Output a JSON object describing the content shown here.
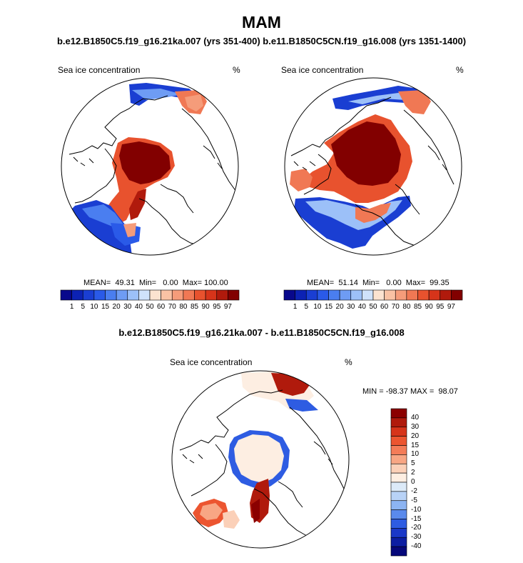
{
  "title": "MAM",
  "subtitle_top": "b.e12.B1850C5.f19_g16.21ka.007 (yrs 351-400) b.e11.B1850C5CN.f19_g16.008 (yrs 1351-1400)",
  "subtitle_diff": "b.e12.B1850C5.f19_g16.21ka.007 - b.e11.B1850C5CN.f19_g16.008",
  "colors": {
    "dark_red": "#8b0000",
    "red": "#e03a1a",
    "blue": "#1740d6",
    "navy": "#0a1a8c",
    "cream": "#fbe8d6",
    "land_outline": "#000000"
  },
  "chart_data": [
    {
      "type": "heatmap",
      "projection": "north-polar-stereographic",
      "title": "Sea ice concentration",
      "units": "%",
      "stats": {
        "mean": "49.31",
        "min": "0.00",
        "max": "100.00"
      },
      "stats_text": "MEAN=  49.31  Min=   0.00  Max= 100.00",
      "colorbar": {
        "orientation": "horizontal",
        "levels": [
          "1",
          "5",
          "10",
          "15",
          "20",
          "30",
          "40",
          "50",
          "60",
          "70",
          "80",
          "85",
          "90",
          "95",
          "97"
        ],
        "colors": [
          "#08088c",
          "#0c22b4",
          "#1a3ed2",
          "#2a5ae8",
          "#4a7ef0",
          "#6e9cf4",
          "#9cc0f8",
          "#cfe2fb",
          "#fce3d0",
          "#f9c2a4",
          "#f59c7a",
          "#f07854",
          "#e8522e",
          "#d6341a",
          "#b01a0c",
          "#820000"
        ]
      }
    },
    {
      "type": "heatmap",
      "projection": "north-polar-stereographic",
      "title": "Sea ice concentration",
      "units": "%",
      "stats": {
        "mean": "51.14",
        "min": "0.00",
        "max": "99.35"
      },
      "stats_text": "MEAN=  51.14  Min=   0.00  Max=  99.35",
      "colorbar": {
        "orientation": "horizontal",
        "levels": [
          "1",
          "5",
          "10",
          "15",
          "20",
          "30",
          "40",
          "50",
          "60",
          "70",
          "80",
          "85",
          "90",
          "95",
          "97"
        ],
        "colors": [
          "#08088c",
          "#0c22b4",
          "#1a3ed2",
          "#2a5ae8",
          "#4a7ef0",
          "#6e9cf4",
          "#9cc0f8",
          "#cfe2fb",
          "#fce3d0",
          "#f9c2a4",
          "#f59c7a",
          "#f07854",
          "#e8522e",
          "#d6341a",
          "#b01a0c",
          "#820000"
        ]
      }
    },
    {
      "type": "heatmap",
      "projection": "north-polar-stereographic",
      "title": "Sea ice concentration",
      "units": "%",
      "stats": {
        "min": "-98.37",
        "max": "98.07"
      },
      "stats_text": "MIN = -98.37 MAX =  98.07",
      "colorbar": {
        "orientation": "vertical",
        "levels": [
          "40",
          "30",
          "20",
          "15",
          "10",
          "5",
          "2",
          "0",
          "-2",
          "-5",
          "-10",
          "-15",
          "-20",
          "-30",
          "-40"
        ],
        "colors": [
          "#8b0000",
          "#b01a0c",
          "#d6341a",
          "#ec5530",
          "#f47c58",
          "#f8a684",
          "#fbd0b8",
          "#fdeee2",
          "#dceaf8",
          "#b8d2f6",
          "#8cb4f2",
          "#5a8aec",
          "#2e5ce2",
          "#1a38c8",
          "#0c1ea2",
          "#06087a"
        ]
      }
    }
  ]
}
